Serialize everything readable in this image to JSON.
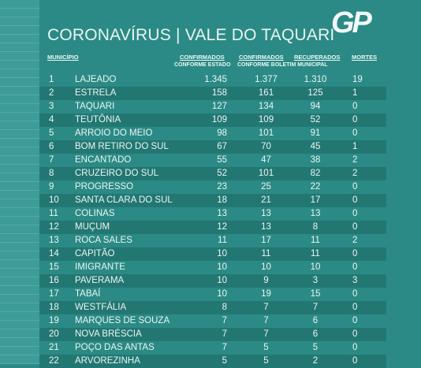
{
  "header": {
    "title_left": "CORONAVÍRUS",
    "separator": "|",
    "title_right": "VALE DO TAQUARI",
    "logo": "GP"
  },
  "table": {
    "columns": {
      "municipio": "MUNICÍPIO",
      "confirmados_estado": "CONFIRMADOS",
      "conforme_estado": "CONFORME ESTADO",
      "confirmados_boletim": "CONFIRMADOS",
      "recuperados": "RECUPERADOS",
      "conforme_boletim": "CONFORME BOLETIM MUNICIPAL",
      "mortes": "MORTES"
    },
    "rows": [
      [
        "1",
        "LAJEADO",
        "1.345",
        "1.377",
        "1.310",
        "19"
      ],
      [
        "2",
        "ESTRELA",
        "158",
        "161",
        "125",
        "1"
      ],
      [
        "3",
        "TAQUARI",
        "127",
        "134",
        "94",
        "0"
      ],
      [
        "4",
        "TEUTÔNIA",
        "109",
        "109",
        "52",
        "0"
      ],
      [
        "5",
        "ARROIO DO MEIO",
        "98",
        "101",
        "91",
        "0"
      ],
      [
        "6",
        "BOM RETIRO DO SUL",
        "67",
        "70",
        "45",
        "1"
      ],
      [
        "7",
        "ENCANTADO",
        "55",
        "47",
        "38",
        "2"
      ],
      [
        "8",
        "CRUZEIRO DO SUL",
        "52",
        "101",
        "82",
        "2"
      ],
      [
        "9",
        "PROGRESSO",
        "23",
        "25",
        "22",
        "0"
      ],
      [
        "10",
        "SANTA CLARA DO SUL",
        "18",
        "21",
        "17",
        "0"
      ],
      [
        "11",
        "COLINAS",
        "13",
        "13",
        "13",
        "0"
      ],
      [
        "12",
        "MUÇUM",
        "12",
        "13",
        "8",
        "0"
      ],
      [
        "13",
        "ROCA SALES",
        "11",
        "17",
        "11",
        "2"
      ],
      [
        "14",
        "CAPITÃO",
        "10",
        "11",
        "11",
        "0"
      ],
      [
        "15",
        "IMIGRANTE",
        "10",
        "10",
        "10",
        "0"
      ],
      [
        "16",
        "PAVERAMA",
        "10",
        "9",
        "3",
        "3"
      ],
      [
        "17",
        "TABAÍ",
        "10",
        "19",
        "15",
        "0"
      ],
      [
        "18",
        "WESTFÁLIA",
        "8",
        "7",
        "7",
        "0"
      ],
      [
        "19",
        "MARQUES DE SOUZA",
        "7",
        "7",
        "6",
        "0"
      ],
      [
        "20",
        "NOVA BRÉSCIA",
        "7",
        "7",
        "6",
        "0"
      ],
      [
        "21",
        "POÇO DAS ANTAS",
        "7",
        "5",
        "5",
        "0"
      ],
      [
        "22",
        "ARVOREZINHA",
        "5",
        "5",
        "2",
        "0"
      ]
    ]
  }
}
